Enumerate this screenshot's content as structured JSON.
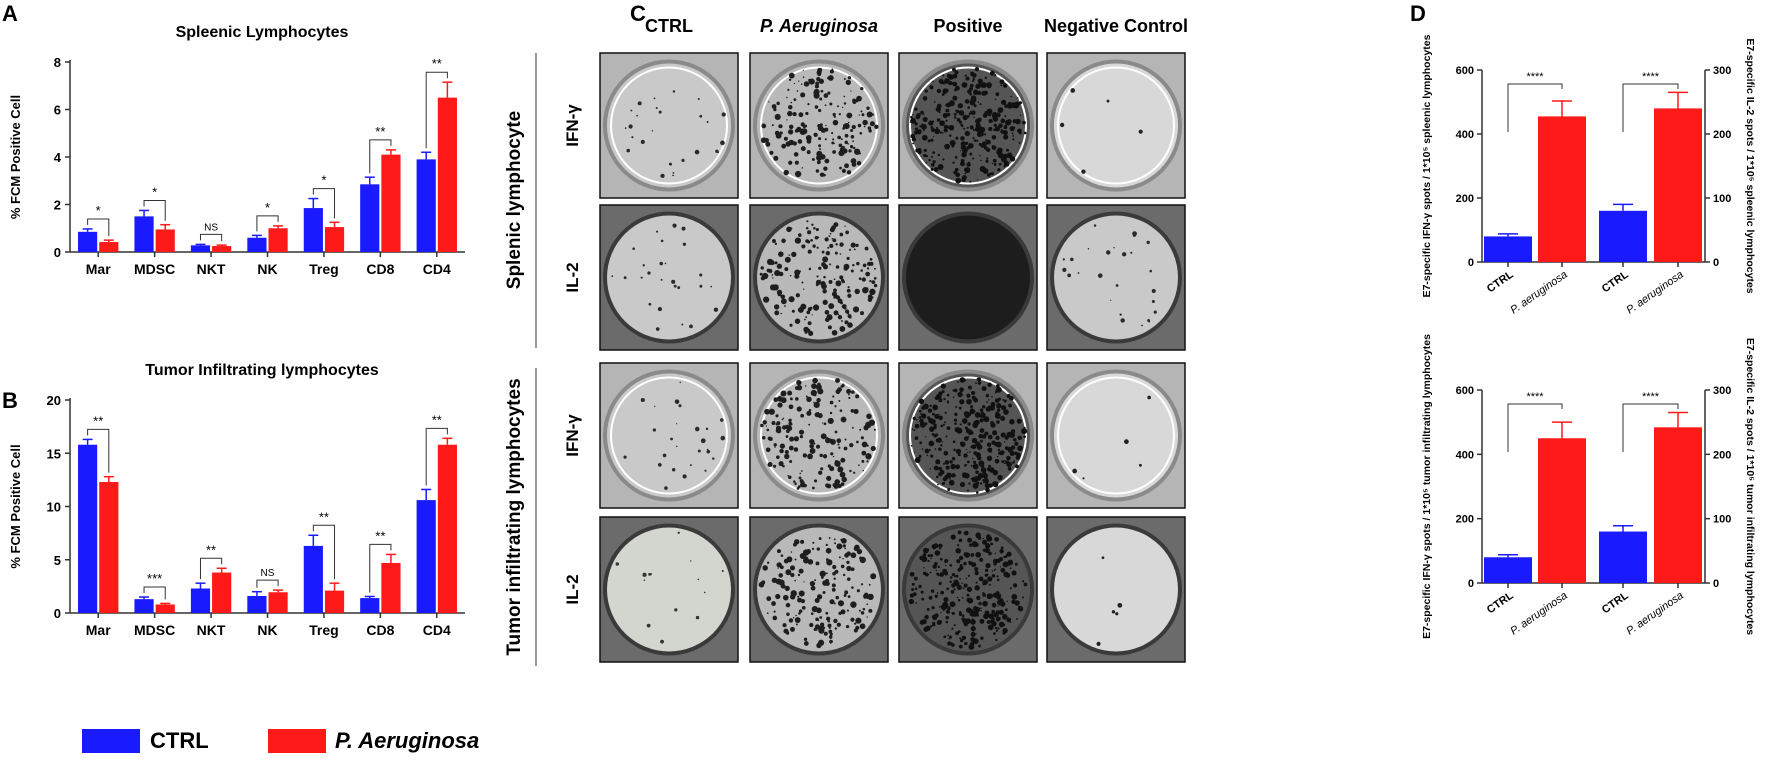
{
  "panel_letters": [
    "A",
    "B",
    "C",
    "D"
  ],
  "colors": {
    "ctrl": "#1a1aff",
    "pa": "#ff1a1a",
    "axis": "#333333"
  },
  "legend": {
    "ctrl_label": "CTRL",
    "pa_label": "P. Aeruginosa"
  },
  "panel_c": {
    "columns": [
      "CTRL",
      "P. Aeruginosa",
      "Positive",
      "Negative Control"
    ],
    "groups": [
      {
        "label": "Splenic lymphocyte",
        "rows": [
          "IFN-γ",
          "IL-2"
        ]
      },
      {
        "label": "Tumor infiltrating lymphocytes",
        "rows": [
          "IFN-γ",
          "IL-2"
        ]
      }
    ],
    "wells": [
      [
        "light-sparse",
        "medium-dense",
        "very-dense",
        "clear"
      ],
      [
        "light-sparse",
        "medium-dense",
        "saturated-dark",
        "light-sparse"
      ],
      [
        "light-sparse",
        "medium-dense",
        "very-dense",
        "clear"
      ],
      [
        "light-fibers",
        "medium-dense",
        "very-dense",
        "clear"
      ]
    ]
  },
  "chart_data": [
    {
      "id": "A",
      "type": "bar",
      "title": "Spleenic Lymphocytes",
      "ylabel": "% FCM Positive Cell",
      "ylim": [
        0,
        8
      ],
      "yticks": [
        0,
        2,
        4,
        6,
        8
      ],
      "categories": [
        "Mar",
        "MDSC",
        "NKT",
        "NK",
        "Treg",
        "CD8",
        "CD4"
      ],
      "series": [
        {
          "name": "CTRL",
          "values": [
            0.85,
            1.5,
            0.28,
            0.6,
            1.85,
            2.85,
            3.9
          ],
          "errors": [
            0.12,
            0.25,
            0.04,
            0.1,
            0.4,
            0.3,
            0.3
          ]
        },
        {
          "name": "P. Aeruginosa",
          "values": [
            0.42,
            0.95,
            0.25,
            1.0,
            1.05,
            4.1,
            6.5
          ],
          "errors": [
            0.08,
            0.2,
            0.04,
            0.1,
            0.2,
            0.2,
            0.65
          ]
        }
      ],
      "significance": [
        "*",
        "*",
        "NS",
        "*",
        "*",
        "**",
        "**"
      ]
    },
    {
      "id": "B",
      "type": "bar",
      "title": "Tumor Infiltrating lymphocytes",
      "ylabel": "% FCM Positive Cell",
      "ylim": [
        0,
        20
      ],
      "yticks": [
        0,
        5,
        10,
        15,
        20
      ],
      "categories": [
        "Mar",
        "MDSC",
        "NKT",
        "NK",
        "Treg",
        "CD8",
        "CD4"
      ],
      "series": [
        {
          "name": "CTRL",
          "values": [
            15.8,
            1.3,
            2.3,
            1.6,
            6.3,
            1.4,
            10.6
          ],
          "errors": [
            0.5,
            0.2,
            0.5,
            0.4,
            1.0,
            0.15,
            1.0
          ]
        },
        {
          "name": "P. Aeruginosa",
          "values": [
            12.3,
            0.8,
            3.8,
            1.95,
            2.1,
            4.7,
            15.8
          ],
          "errors": [
            0.5,
            0.1,
            0.4,
            0.2,
            0.7,
            0.8,
            0.6
          ]
        }
      ],
      "significance": [
        "**",
        "***",
        "**",
        "NS",
        "**",
        "**",
        "**"
      ]
    },
    {
      "id": "D-top",
      "type": "bar",
      "ylabel_left": "E7-specific IFN-γ spots / 1*10⁵ spleenic lymphocytes",
      "ylabel_right": "E7-specific IL-2 spots / 1*10⁵ spleenic lymphocytes",
      "ylim_left": [
        0,
        600
      ],
      "yticks_left": [
        0,
        200,
        400,
        600
      ],
      "ylim_right": [
        0,
        300
      ],
      "yticks_right": [
        0,
        100,
        200,
        300
      ],
      "categories": [
        "CTRL",
        "P. aeruginosa",
        "CTRL",
        "P. aeruginosa"
      ],
      "axis_of_bar": [
        "left",
        "left",
        "right",
        "right"
      ],
      "values": [
        80,
        455,
        80,
        240
      ],
      "errors": [
        8,
        48,
        10,
        25
      ],
      "significance": [
        "****",
        "****"
      ]
    },
    {
      "id": "D-bottom",
      "type": "bar",
      "ylabel_left": "E7-specific IFN-γ spots / 1*10⁵ tumor infiltrating lymphocytes",
      "ylabel_right": "E7-specific IL-2 spots / 1*10⁵ tumor infiltrating lymphocytes",
      "ylim_left": [
        0,
        600
      ],
      "yticks_left": [
        0,
        200,
        400,
        600
      ],
      "ylim_right": [
        0,
        300
      ],
      "yticks_right": [
        0,
        100,
        200,
        300
      ],
      "categories": [
        "CTRL",
        "P. aeruginosa",
        "CTRL",
        "P. aeruginosa"
      ],
      "axis_of_bar": [
        "left",
        "left",
        "right",
        "right"
      ],
      "values": [
        80,
        450,
        80,
        242
      ],
      "errors": [
        8,
        50,
        9,
        23
      ],
      "significance": [
        "****",
        "****"
      ]
    }
  ]
}
